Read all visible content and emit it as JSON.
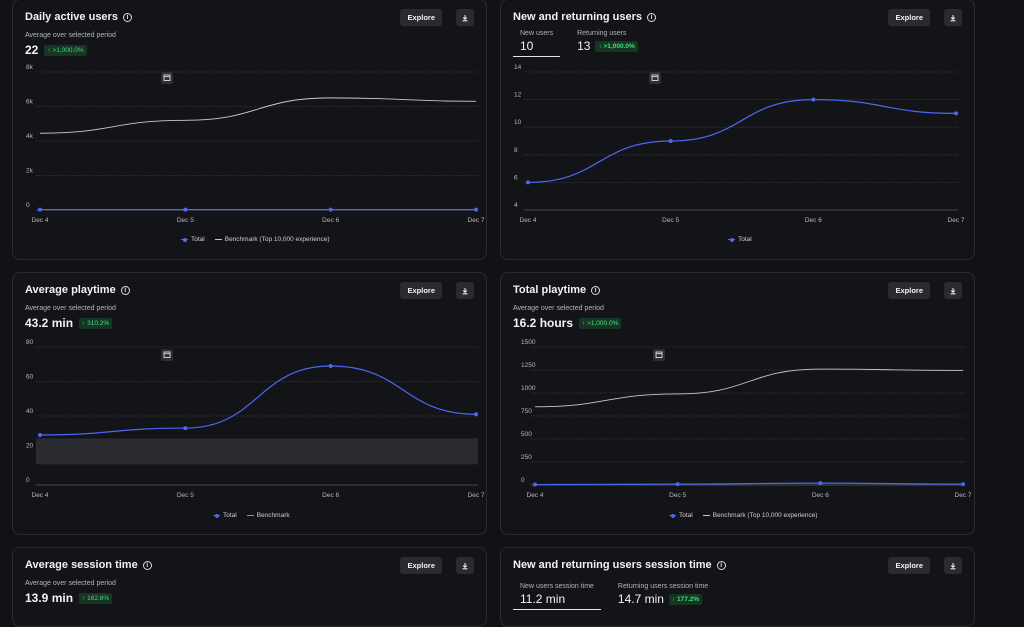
{
  "colors": {
    "total": "#4a68f0",
    "benchmark": "#c9c9cc",
    "band": "#2a2b30",
    "grid": "#3a3b40",
    "badge_bg": "#163524",
    "badge_fg": "#3ee07b"
  },
  "common": {
    "explore_label": "Explore",
    "download_icon": "download-icon",
    "info_icon": "info-icon",
    "calendar_icon": "calendar-icon"
  },
  "cards": {
    "dau": {
      "title": "Daily active users",
      "subtitle": "Average over selected period",
      "value": "22",
      "badge": "↑ >1,000.0%",
      "legend": [
        "Total",
        "Benchmark (Top 10,000 experience)"
      ],
      "chart_data": {
        "type": "line",
        "x": [
          "Dec 4",
          "Dec 5",
          "Dec 6",
          "Dec 7"
        ],
        "y_ticks": [
          "8k",
          "6k",
          "4k",
          "2k",
          "0"
        ],
        "ylim": [
          0,
          8000
        ],
        "series": [
          {
            "name": "Total",
            "values": [
              22,
              22,
              22,
              22
            ]
          },
          {
            "name": "Benchmark (Top 10,000 experience)",
            "values": [
              4450,
              5200,
              6500,
              6300
            ]
          }
        ]
      }
    },
    "nru": {
      "title": "New and returning users",
      "tabs": [
        {
          "label": "New users",
          "value": "10"
        },
        {
          "label": "Returning users",
          "value": "13",
          "badge": "↑ >1,000.0%"
        }
      ],
      "legend": [
        "Total"
      ],
      "chart_data": {
        "type": "line",
        "x": [
          "Dec 4",
          "Dec 5",
          "Dec 6",
          "Dec 7"
        ],
        "y_ticks": [
          "14",
          "12",
          "10",
          "8",
          "6",
          "4"
        ],
        "ylim": [
          4,
          14
        ],
        "series": [
          {
            "name": "Total",
            "values": [
              6,
              9,
              12,
              11
            ]
          }
        ]
      }
    },
    "playtime": {
      "title": "Average playtime",
      "subtitle": "Average over selected period",
      "value": "43.2 min",
      "badge": "↑ 310.2%",
      "legend": [
        "Total",
        "Benchmark"
      ],
      "chart_data": {
        "type": "line",
        "x": [
          "Dec 4",
          "Dec 5",
          "Dec 6",
          "Dec 7"
        ],
        "y_ticks": [
          "80",
          "60",
          "40",
          "20",
          "0"
        ],
        "ylim": [
          0,
          80
        ],
        "benchmark_band": [
          12,
          27
        ],
        "series": [
          {
            "name": "Total",
            "values": [
              29,
              33,
              69,
              41
            ]
          }
        ]
      }
    },
    "total_playtime": {
      "title": "Total playtime",
      "subtitle": "Average over selected period",
      "value": "16.2 hours",
      "badge": "↑ >1,000.0%",
      "legend": [
        "Total",
        "Benchmark (Top 10,000 experience)"
      ],
      "chart_data": {
        "type": "line",
        "x": [
          "Dec 4",
          "Dec 5",
          "Dec 6",
          "Dec 7"
        ],
        "y_ticks": [
          "1500",
          "1250",
          "1000",
          "750",
          "500",
          "250",
          "0"
        ],
        "ylim": [
          0,
          1500
        ],
        "series": [
          {
            "name": "Total",
            "values": [
              5,
              10,
              20,
              10
            ]
          },
          {
            "name": "Benchmark (Top 10,000 experience)",
            "values": [
              850,
              990,
              1260,
              1245
            ]
          }
        ]
      }
    },
    "session": {
      "title": "Average session time",
      "subtitle": "Average over selected period",
      "value": "13.9 min",
      "badge": "↑ 162.6%"
    },
    "nru_session": {
      "title": "New and returning users session time",
      "tabs": [
        {
          "label": "New users session time",
          "value": "11.2 min"
        },
        {
          "label": "Returning users session time",
          "value": "14.7 min",
          "badge": "↑ 177.2%"
        }
      ]
    }
  }
}
